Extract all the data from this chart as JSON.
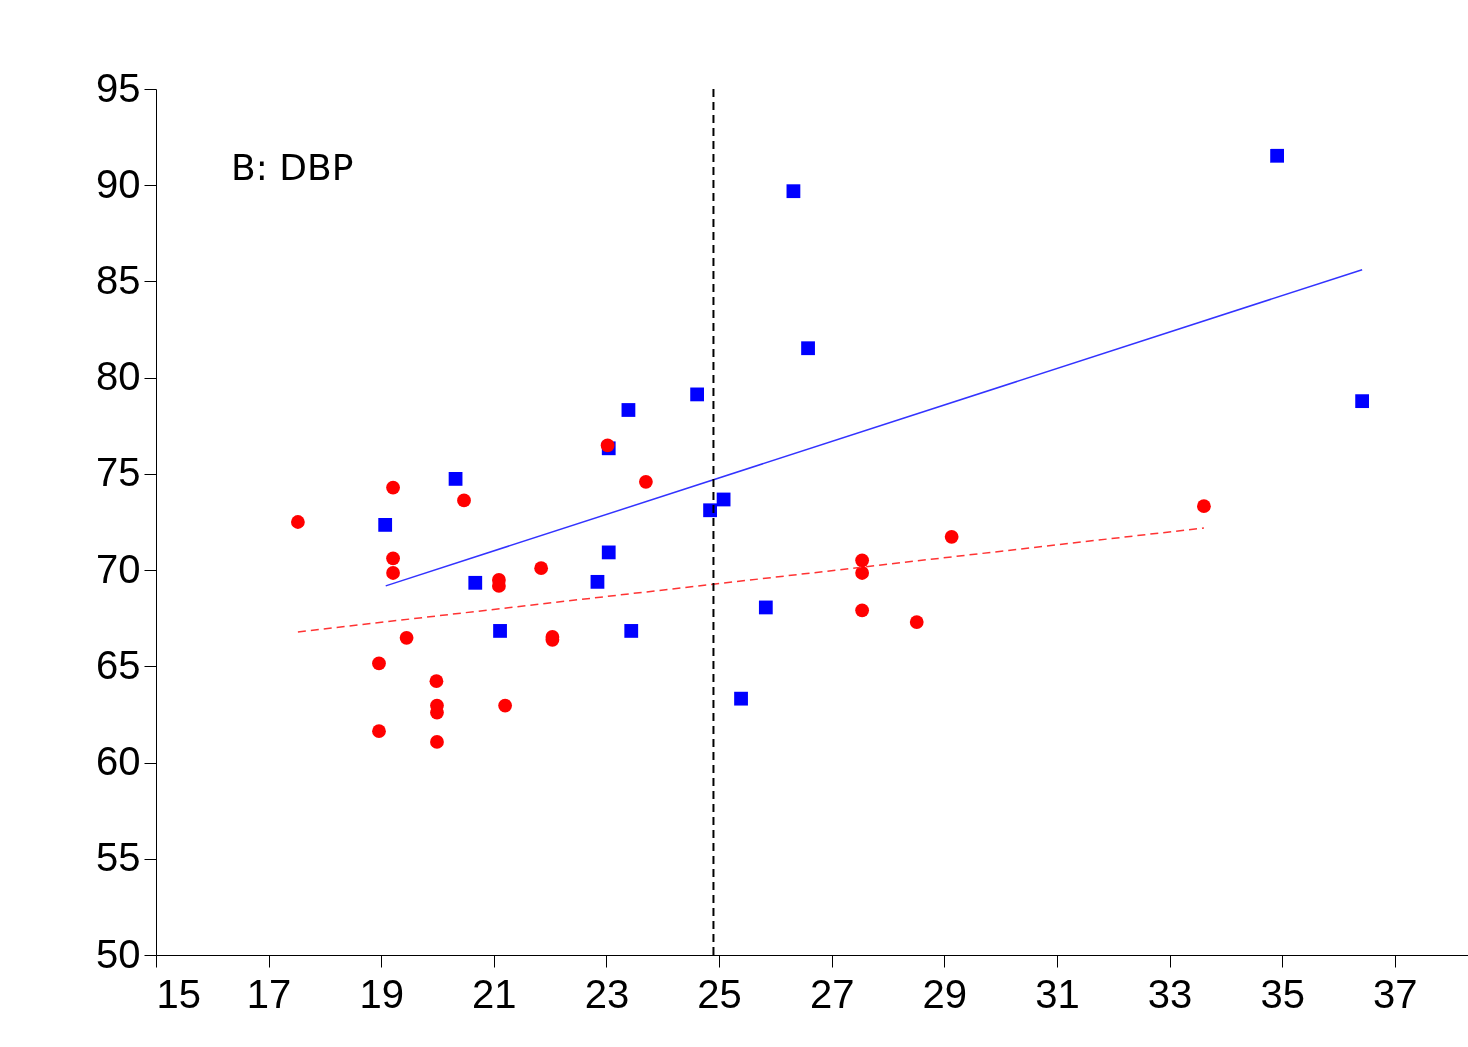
{
  "chart_data": {
    "type": "scatter",
    "annotations": [
      "B: DBP"
    ],
    "xlim": [
      15,
      38.3
    ],
    "xticks": [
      15,
      17,
      19,
      21,
      23,
      25,
      27,
      29,
      31,
      33,
      35,
      37
    ],
    "ylim": [
      50,
      95
    ],
    "yticks": [
      50,
      55,
      60,
      65,
      70,
      75,
      80,
      85,
      90,
      95
    ],
    "grid": false,
    "series": [
      {
        "type": "scatter",
        "marker": "square",
        "color": "#0000ff",
        "x": [
          19.07,
          20.32,
          20.67,
          21.11,
          22.84,
          23.04,
          23.04,
          23.39,
          23.44,
          24.61,
          24.84,
          25.08,
          25.39,
          25.83,
          26.32,
          26.58,
          34.91,
          36.42
        ],
        "values": [
          72.35,
          74.74,
          69.34,
          66.84,
          69.39,
          70.92,
          76.33,
          78.32,
          66.84,
          79.13,
          73.11,
          73.67,
          63.32,
          68.06,
          89.69,
          81.53,
          91.53,
          78.78
        ]
      },
      {
        "type": "scatter",
        "marker": "circle",
        "color": "#ff0000",
        "x": [
          17.52,
          18.96,
          18.96,
          19.21,
          19.21,
          19.21,
          19.45,
          19.98,
          19.99,
          19.99,
          19.99,
          20.47,
          21.09,
          21.09,
          21.2,
          21.84,
          22.04,
          22.04,
          23.02,
          23.7,
          27.54,
          27.54,
          27.54,
          28.51,
          29.13,
          33.61
        ],
        "values": [
          72.5,
          65.15,
          61.63,
          74.29,
          70.61,
          69.85,
          66.48,
          64.23,
          62.96,
          62.6,
          61.07,
          73.62,
          69.49,
          69.18,
          62.96,
          70.1,
          66.53,
          66.38,
          76.48,
          74.59,
          70.51,
          69.85,
          67.91,
          67.3,
          71.73,
          73.32
        ]
      },
      {
        "type": "line",
        "line_style": "solid",
        "color": "#3333ff",
        "x": [
          19.08,
          36.42
        ],
        "values": [
          69.18,
          85.61
        ]
      },
      {
        "type": "line",
        "line_style": "dashed",
        "color": "#ff3333",
        "x": [
          17.52,
          33.61
        ],
        "values": [
          66.79,
          72.19
        ]
      }
    ],
    "ref_lines": [
      {
        "axis": "x",
        "value": 24.9,
        "color": "#000000",
        "line_style": "dashed"
      }
    ]
  }
}
